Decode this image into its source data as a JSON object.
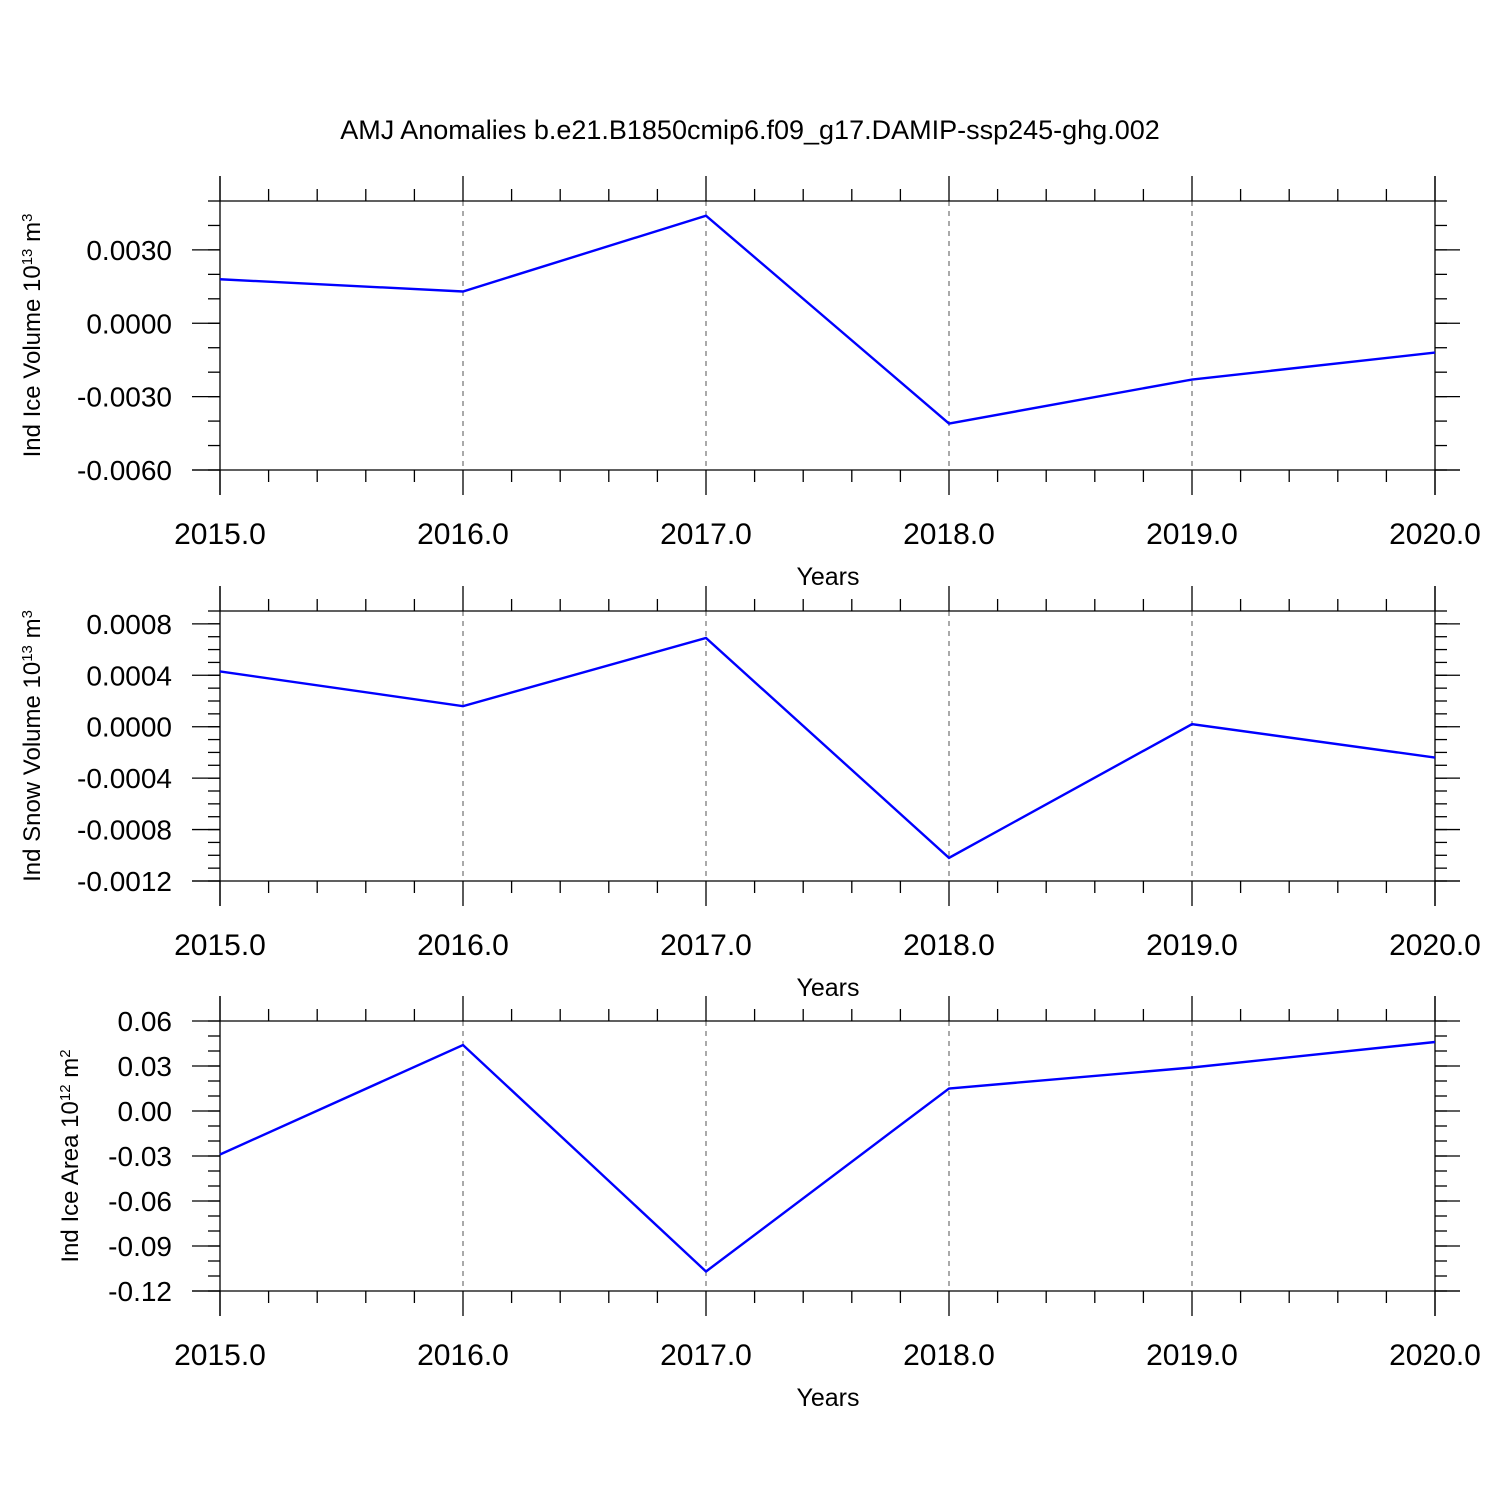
{
  "title": "AMJ Anomalies b.e21.B1850cmip6.f09_g17.DAMIP-ssp245-ghg.002",
  "colors": {
    "line": "#0000ff",
    "axis": "#000000",
    "grid": "#555555"
  },
  "chart_data": [
    {
      "type": "line",
      "xlabel": "Years",
      "ylabel": {
        "base": "Ind Ice Volume 10",
        "exp": "13",
        "unit": " m",
        "unit_exp": "3"
      },
      "xlim": [
        2015,
        2020
      ],
      "ylim": [
        -0.006,
        0.005
      ],
      "x_ticks": [
        2015,
        2016,
        2017,
        2018,
        2019,
        2020
      ],
      "x_tick_labels": [
        "2015.0",
        "2016.0",
        "2017.0",
        "2018.0",
        "2019.0",
        "2020.0"
      ],
      "y_ticks": [
        0.003,
        0.0,
        -0.003,
        -0.006
      ],
      "y_tick_labels": [
        "0.0030",
        "0.0000",
        "-0.0030",
        "-0.0060"
      ],
      "y_minor_step": 0.001,
      "grid": "x-dashed",
      "x": [
        2015,
        2016,
        2017,
        2018,
        2019,
        2020
      ],
      "y": [
        0.0018,
        0.0013,
        0.0044,
        -0.0041,
        -0.0023,
        -0.0012
      ]
    },
    {
      "type": "line",
      "xlabel": "Years",
      "ylabel": {
        "base": "Ind Snow Volume 10",
        "exp": "13",
        "unit": " m",
        "unit_exp": "3"
      },
      "xlim": [
        2015,
        2020
      ],
      "ylim": [
        -0.0012,
        0.0009
      ],
      "x_ticks": [
        2015,
        2016,
        2017,
        2018,
        2019,
        2020
      ],
      "x_tick_labels": [
        "2015.0",
        "2016.0",
        "2017.0",
        "2018.0",
        "2019.0",
        "2020.0"
      ],
      "y_ticks": [
        0.0008,
        0.0004,
        0.0,
        -0.0004,
        -0.0008,
        -0.0012
      ],
      "y_tick_labels": [
        "0.0008",
        "0.0004",
        "0.0000",
        "-0.0004",
        "-0.0008",
        "-0.0012"
      ],
      "y_minor_step": 0.0001,
      "grid": "x-dashed",
      "x": [
        2015,
        2016,
        2017,
        2018,
        2019,
        2020
      ],
      "y": [
        0.00043,
        0.00016,
        0.00069,
        -0.00102,
        2e-05,
        -0.00024
      ]
    },
    {
      "type": "line",
      "xlabel": "Years",
      "ylabel": {
        "base": "Ind Ice Area 10",
        "exp": "12",
        "unit": " m",
        "unit_exp": "2"
      },
      "xlim": [
        2015,
        2020
      ],
      "ylim": [
        -0.12,
        0.06
      ],
      "x_ticks": [
        2015,
        2016,
        2017,
        2018,
        2019,
        2020
      ],
      "x_tick_labels": [
        "2015.0",
        "2016.0",
        "2017.0",
        "2018.0",
        "2019.0",
        "2020.0"
      ],
      "y_ticks": [
        0.06,
        0.03,
        0.0,
        -0.03,
        -0.06,
        -0.09,
        -0.12
      ],
      "y_tick_labels": [
        "0.06",
        "0.03",
        "0.00",
        "-0.03",
        "-0.06",
        "-0.09",
        "-0.12"
      ],
      "y_minor_step": 0.01,
      "grid": "x-dashed",
      "x": [
        2015,
        2016,
        2017,
        2018,
        2019,
        2020
      ],
      "y": [
        -0.029,
        0.044,
        -0.107,
        0.015,
        0.029,
        0.046
      ]
    }
  ]
}
